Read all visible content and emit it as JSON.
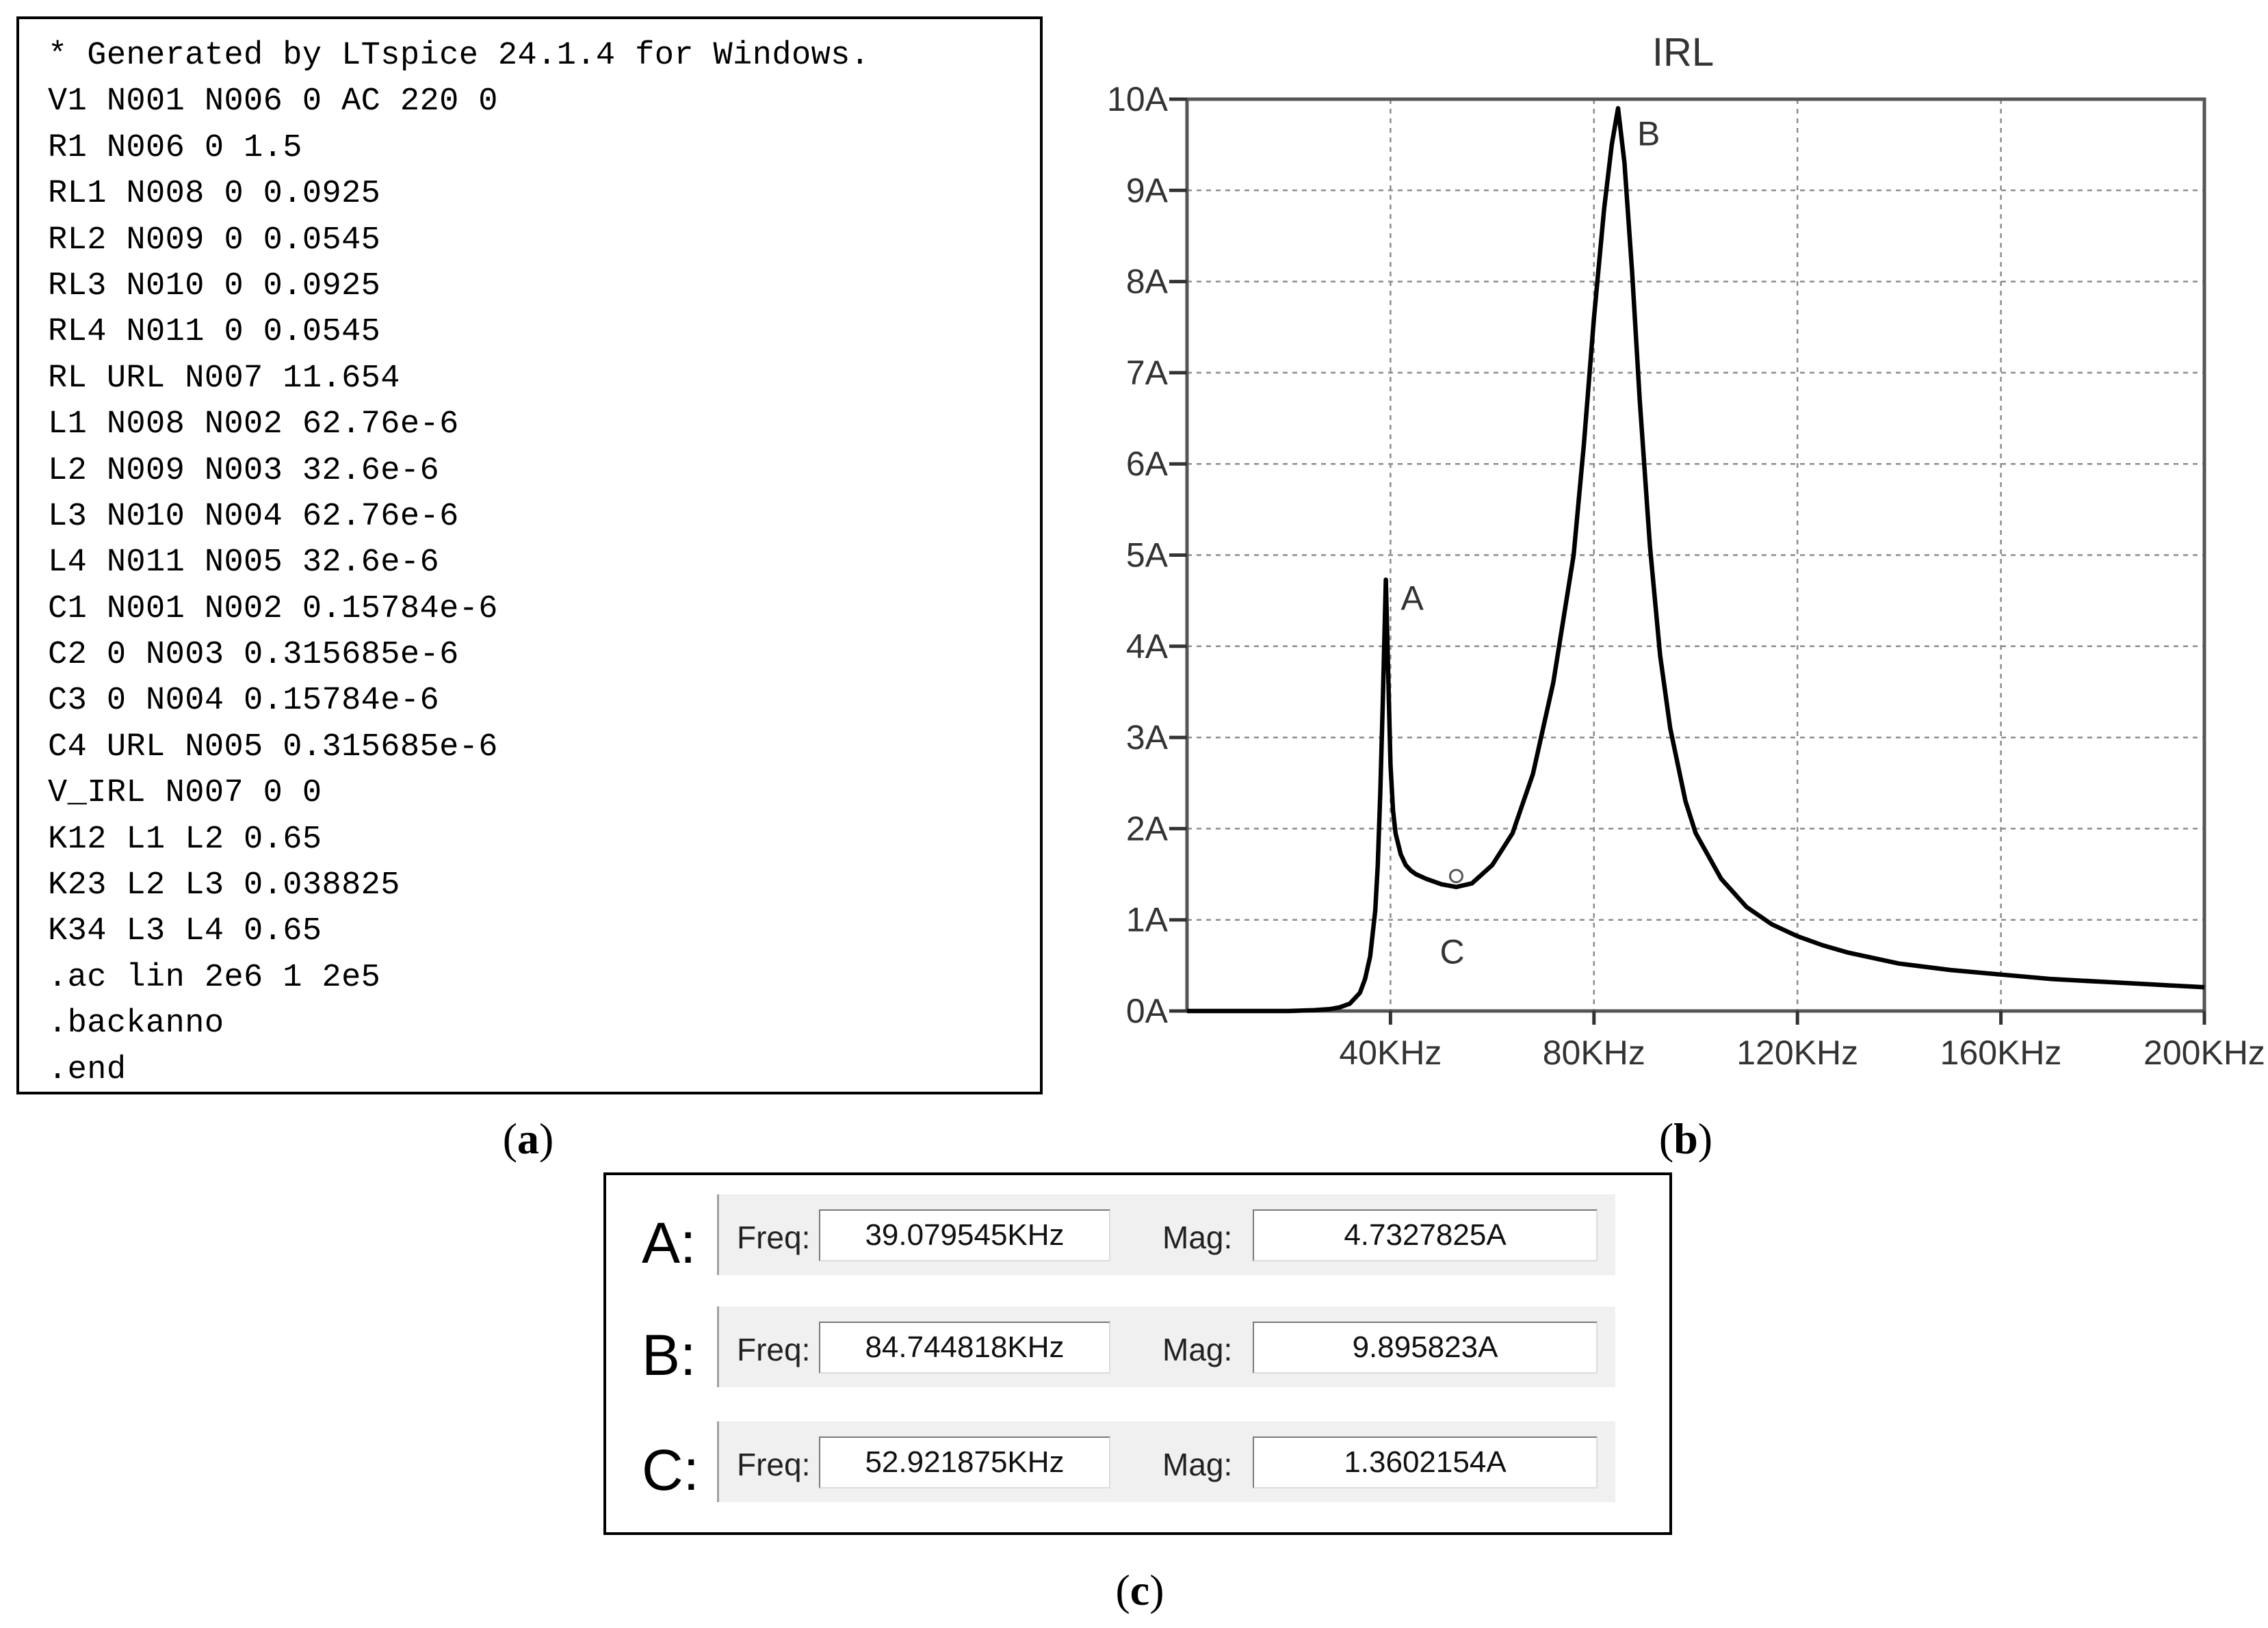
{
  "netlist": {
    "lines": [
      "* Generated by LTspice 24.1.4 for Windows.",
      "V1 N001 N006 0 AC 220 0",
      "R1 N006 0 1.5",
      "RL1 N008 0 0.0925",
      "RL2 N009 0 0.0545",
      "RL3 N010 0 0.0925",
      "RL4 N011 0 0.0545",
      "RL URL N007 11.654",
      "L1 N008 N002 62.76e-6",
      "L2 N009 N003 32.6e-6",
      "L3 N010 N004 62.76e-6",
      "L4 N011 N005 32.6e-6",
      "C1 N001 N002 0.15784e-6",
      "C2 0 N003 0.315685e-6",
      "C3 0 N004 0.15784e-6",
      "C4 URL N005 0.315685e-6",
      "V_IRL N007 0 0",
      "K12 L1 L2 0.65",
      "K23 L2 L3 0.038825",
      "K34 L3 L4 0.65",
      ".ac lin 2e6 1 2e5",
      ".backanno",
      ".end"
    ]
  },
  "captions": {
    "a": {
      "open": "(",
      "letter": "a",
      "close": ")"
    },
    "b": {
      "open": "(",
      "letter": "b",
      "close": ")"
    },
    "c": {
      "open": "(",
      "letter": "c",
      "close": ")"
    }
  },
  "chart_data": {
    "type": "line",
    "title": "IRL",
    "xlabel": "",
    "ylabel": "",
    "xlim": [
      0,
      200
    ],
    "ylim": [
      0,
      10
    ],
    "x_unit": "KHz",
    "y_unit": "A",
    "x_ticks": [
      40,
      80,
      120,
      160,
      200
    ],
    "x_tick_labels": [
      "40KHz",
      "80KHz",
      "120KHz",
      "160KHz",
      "200KHz"
    ],
    "y_ticks": [
      0,
      1,
      2,
      3,
      4,
      5,
      6,
      7,
      8,
      9,
      10
    ],
    "y_tick_labels": [
      "0A",
      "1A",
      "2A",
      "3A",
      "4A",
      "5A",
      "6A",
      "7A",
      "8A",
      "9A",
      "10A"
    ],
    "grid": true,
    "line_color": "#000000",
    "series": [
      {
        "x": [
          0,
          10,
          20,
          25,
          28,
          30,
          32,
          34,
          35,
          36,
          37,
          37.5,
          38,
          38.5,
          39.08,
          39.6,
          40,
          40.5,
          41,
          42,
          43,
          44,
          45,
          47,
          50,
          52.92,
          56,
          60,
          64,
          68,
          72,
          76,
          78,
          80,
          82,
          83.5,
          84.74,
          86,
          87.5,
          89,
          91,
          93,
          95,
          98,
          100,
          105,
          110,
          115,
          120,
          125,
          130,
          140,
          150,
          160,
          170,
          180,
          190,
          200
        ],
        "y": [
          0,
          0,
          0,
          0.01,
          0.02,
          0.04,
          0.08,
          0.2,
          0.35,
          0.6,
          1.1,
          1.6,
          2.4,
          3.4,
          4.73,
          3.6,
          2.7,
          2.2,
          1.95,
          1.72,
          1.6,
          1.54,
          1.5,
          1.45,
          1.39,
          1.36,
          1.4,
          1.6,
          1.95,
          2.6,
          3.6,
          5.0,
          6.2,
          7.6,
          8.8,
          9.5,
          9.9,
          9.3,
          8.1,
          6.7,
          5.1,
          3.9,
          3.1,
          2.3,
          1.95,
          1.45,
          1.14,
          0.95,
          0.82,
          0.72,
          0.64,
          0.52,
          0.45,
          0.4,
          0.35,
          0.32,
          0.29,
          0.26
        ]
      }
    ],
    "markers": [
      {
        "label": "A",
        "x": 39.08,
        "y": 4.73
      },
      {
        "label": "B",
        "x": 84.74,
        "y": 9.9
      },
      {
        "label": "C",
        "x": 52.92,
        "y": 1.36
      }
    ]
  },
  "cursors": {
    "freq_label": "Freq:",
    "mag_label": "Mag:",
    "rows": [
      {
        "letter": "A:",
        "freq": "39.079545KHz",
        "mag": "4.7327825A"
      },
      {
        "letter": "B:",
        "freq": "84.744818KHz",
        "mag": "9.895823A"
      },
      {
        "letter": "C:",
        "freq": "52.921875KHz",
        "mag": "1.3602154A"
      }
    ]
  }
}
